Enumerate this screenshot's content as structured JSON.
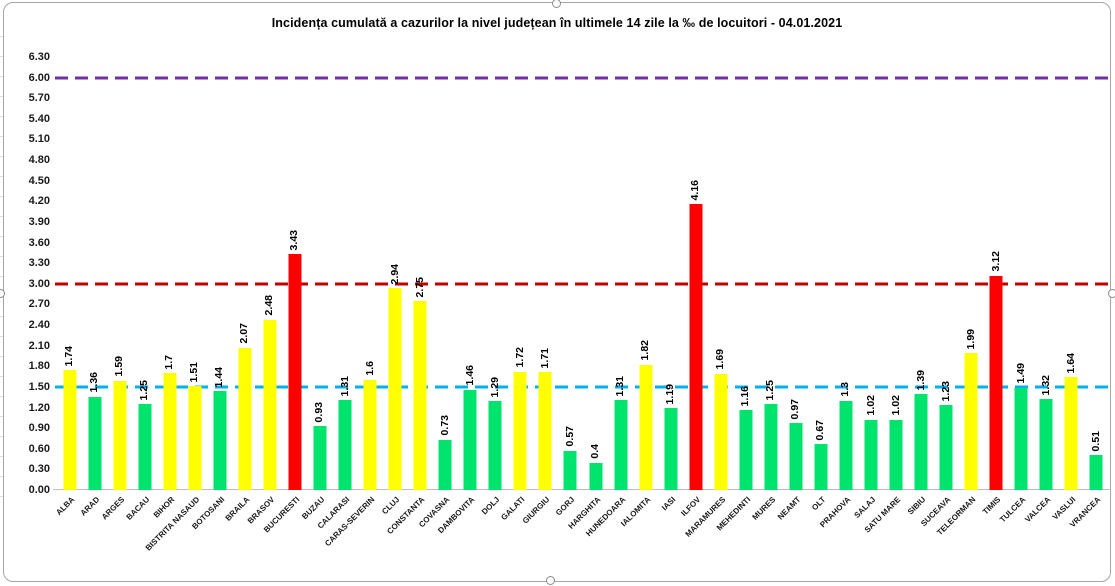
{
  "chart_data": {
    "type": "bar",
    "title": "Incidența cumulată a cazurilor la nivel județean în ultimele 14 zile la ‰ de locuitori - 04.01.2021",
    "categories": [
      "ALBA",
      "ARAD",
      "ARGES",
      "BACAU",
      "BIHOR",
      "BISTRITA NASAUD",
      "BOTOSANI",
      "BRAILA",
      "BRASOV",
      "BUCURESTI",
      "BUZAU",
      "CALARASI",
      "CARAS-SEVERIN",
      "CLUJ",
      "CONSTANTA",
      "COVASNA",
      "DAMBOVITA",
      "DOLJ",
      "GALATI",
      "GIURGIU",
      "GORJ",
      "HARGHITA",
      "HUNEDOARA",
      "IALOMITA",
      "IASI",
      "ILFOV",
      "MARAMURES",
      "MEHEDINTI",
      "MURES",
      "NEAMT",
      "OLT",
      "PRAHOVA",
      "SALAJ",
      "SATU MARE",
      "SIBIU",
      "SUCEAVA",
      "TELEORMAN",
      "TIMIS",
      "TULCEA",
      "VALCEA",
      "VASLUI",
      "VRANCEA"
    ],
    "values": [
      1.74,
      1.36,
      1.59,
      1.25,
      1.7,
      1.51,
      1.44,
      2.07,
      2.48,
      3.43,
      0.93,
      1.31,
      1.6,
      2.94,
      2.75,
      0.73,
      1.46,
      1.29,
      1.72,
      1.71,
      0.57,
      0.4,
      1.31,
      1.82,
      1.19,
      4.16,
      1.69,
      1.16,
      1.25,
      0.97,
      0.67,
      1.3,
      1.02,
      1.02,
      1.39,
      1.23,
      1.99,
      3.12,
      1.49,
      1.32,
      1.64,
      0.51
    ],
    "value_labels": [
      "1.74",
      "1.36",
      "1.59",
      "1.25",
      "1.7",
      "1.51",
      "1.44",
      "2.07",
      "2.48",
      "3.43",
      "0.93",
      "1.31",
      "1.6",
      "2.94",
      "2.75",
      "0.73",
      "1.46",
      "1.29",
      "1.72",
      "1.71",
      "0.57",
      "0.4",
      "1.31",
      "1.82",
      "1.19",
      "4.16",
      "1.69",
      "1.16",
      "1.25",
      "0.97",
      "0.67",
      "1.3",
      "1.02",
      "1.02",
      "1.39",
      "1.23",
      "1.99",
      "3.12",
      "1.49",
      "1.32",
      "1.64",
      "0.51"
    ],
    "bar_color_keys": [
      "yellow",
      "green",
      "yellow",
      "green",
      "yellow",
      "yellow",
      "green",
      "yellow",
      "yellow",
      "red",
      "green",
      "green",
      "yellow",
      "yellow",
      "yellow",
      "green",
      "green",
      "green",
      "yellow",
      "yellow",
      "green",
      "green",
      "green",
      "yellow",
      "green",
      "red",
      "yellow",
      "green",
      "green",
      "green",
      "green",
      "green",
      "green",
      "green",
      "green",
      "green",
      "yellow",
      "red",
      "green",
      "green",
      "yellow",
      "green"
    ],
    "palette": {
      "green": "#00e36d",
      "yellow": "#ffff00",
      "red": "#ff0000"
    },
    "ylim": [
      0,
      6.3
    ],
    "ytick_step": 0.3,
    "yticks": [
      "0.00",
      "0.30",
      "0.60",
      "0.90",
      "1.20",
      "1.50",
      "1.80",
      "2.10",
      "2.40",
      "2.70",
      "3.00",
      "3.30",
      "3.60",
      "3.90",
      "4.20",
      "4.50",
      "4.80",
      "5.10",
      "5.40",
      "5.70",
      "6.00",
      "6.30"
    ],
    "reference_lines": [
      {
        "name": "threshold-line-6",
        "value": 6.0,
        "color": "#7030a0",
        "style": "dashed"
      },
      {
        "name": "threshold-line-3",
        "value": 3.0,
        "color": "#c00000",
        "style": "dashed"
      },
      {
        "name": "threshold-line-1-5",
        "value": 1.5,
        "color": "#00b0f0",
        "style": "dashed"
      }
    ],
    "grid": "off",
    "legend": "none",
    "value_label_rotation": 90,
    "category_label_rotation": 45
  }
}
